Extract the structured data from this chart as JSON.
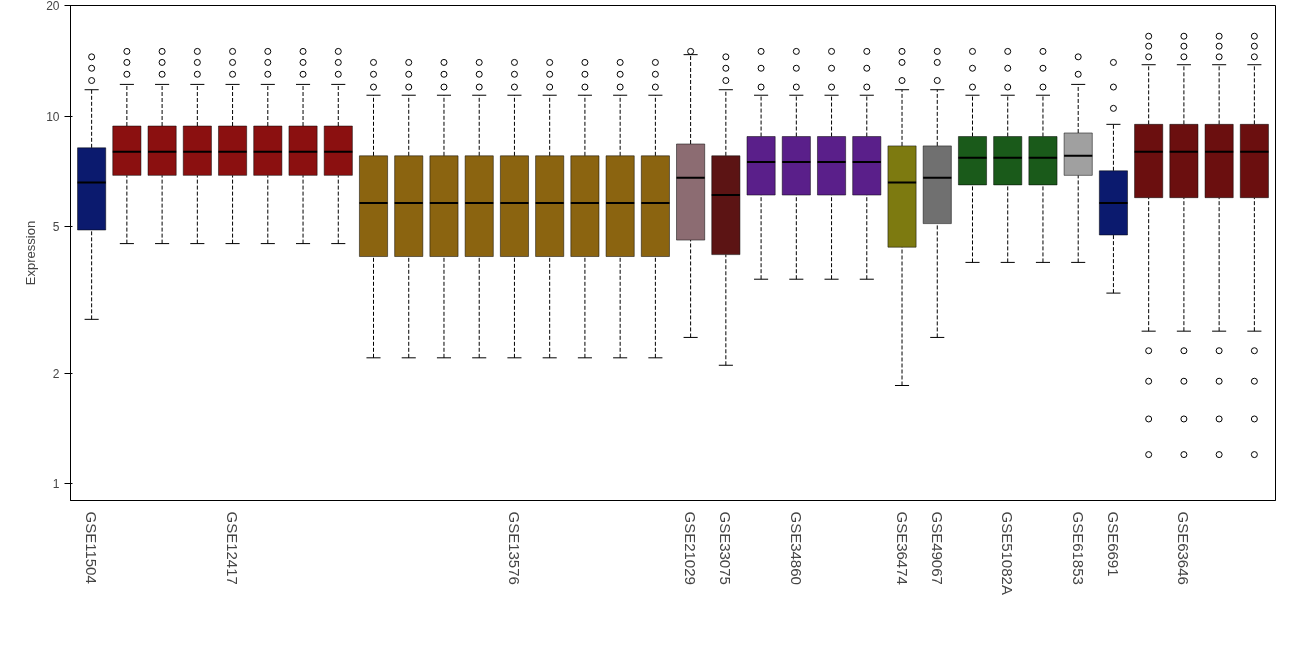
{
  "chart_data": {
    "type": "box",
    "ylabel": "Expression",
    "log": true,
    "grid": false,
    "marker": "circle",
    "line_style": "dashed",
    "ylim": [
      0.9,
      20
    ],
    "yticks": [
      1,
      2,
      5,
      10,
      20
    ],
    "categories": [
      "GSE11504",
      null,
      null,
      null,
      "GSE12417",
      null,
      null,
      null,
      null,
      null,
      null,
      null,
      "GSE13576",
      null,
      null,
      null,
      null,
      "GSE21029",
      "GSE33075",
      null,
      "GSE34860",
      null,
      null,
      "GSE36474",
      "GSE49067",
      null,
      "GSE51082A",
      null,
      "GSE61853",
      "GSE6691",
      null,
      "GSE63646",
      null,
      null
    ],
    "colors": [
      "#0b1a6e",
      "#8b1010",
      "#8b1010",
      "#8b1010",
      "#8b1010",
      "#8b1010",
      "#8b1010",
      "#8b1010",
      "#8b6410",
      "#8b6410",
      "#8b6410",
      "#8b6410",
      "#8b6410",
      "#8b6410",
      "#8b6410",
      "#8b6410",
      "#8b6410",
      "#8c6c72",
      "#5c1414",
      "#5a1f8a",
      "#5a1f8a",
      "#5a1f8a",
      "#5a1f8a",
      "#7d7a10",
      "#707070",
      "#1a5a1a",
      "#1a5a1a",
      "#1a5a1a",
      "#a0a0a0",
      "#0b1a6e",
      "#6b0f0f",
      "#6b0f0f",
      "#6b0f0f",
      "#6b0f0f"
    ],
    "boxes": [
      {
        "low": 2.8,
        "q1": 4.9,
        "median": 6.6,
        "q3": 8.2,
        "high": 11.8,
        "outliers": [
          12.5,
          13.5,
          14.5
        ]
      },
      {
        "low": 4.5,
        "q1": 6.9,
        "median": 8.0,
        "q3": 9.4,
        "high": 12.2,
        "outliers": [
          13,
          14,
          15
        ]
      },
      {
        "low": 4.5,
        "q1": 6.9,
        "median": 8.0,
        "q3": 9.4,
        "high": 12.2,
        "outliers": [
          13,
          14,
          15
        ]
      },
      {
        "low": 4.5,
        "q1": 6.9,
        "median": 8.0,
        "q3": 9.4,
        "high": 12.2,
        "outliers": [
          13,
          14,
          15
        ]
      },
      {
        "low": 4.5,
        "q1": 6.9,
        "median": 8.0,
        "q3": 9.4,
        "high": 12.2,
        "outliers": [
          13,
          14,
          15
        ]
      },
      {
        "low": 4.5,
        "q1": 6.9,
        "median": 8.0,
        "q3": 9.4,
        "high": 12.2,
        "outliers": [
          13,
          14,
          15
        ]
      },
      {
        "low": 4.5,
        "q1": 6.9,
        "median": 8.0,
        "q3": 9.4,
        "high": 12.2,
        "outliers": [
          13,
          14,
          15
        ]
      },
      {
        "low": 4.5,
        "q1": 6.9,
        "median": 8.0,
        "q3": 9.4,
        "high": 12.2,
        "outliers": [
          13,
          14,
          15
        ]
      },
      {
        "low": 2.2,
        "q1": 4.15,
        "median": 5.8,
        "q3": 7.8,
        "high": 11.4,
        "outliers": [
          12,
          13,
          14
        ]
      },
      {
        "low": 2.2,
        "q1": 4.15,
        "median": 5.8,
        "q3": 7.8,
        "high": 11.4,
        "outliers": [
          12,
          13,
          14
        ]
      },
      {
        "low": 2.2,
        "q1": 4.15,
        "median": 5.8,
        "q3": 7.8,
        "high": 11.4,
        "outliers": [
          12,
          13,
          14
        ]
      },
      {
        "low": 2.2,
        "q1": 4.15,
        "median": 5.8,
        "q3": 7.8,
        "high": 11.4,
        "outliers": [
          12,
          13,
          14
        ]
      },
      {
        "low": 2.2,
        "q1": 4.15,
        "median": 5.8,
        "q3": 7.8,
        "high": 11.4,
        "outliers": [
          12,
          13,
          14
        ]
      },
      {
        "low": 2.2,
        "q1": 4.15,
        "median": 5.8,
        "q3": 7.8,
        "high": 11.4,
        "outliers": [
          12,
          13,
          14
        ]
      },
      {
        "low": 2.2,
        "q1": 4.15,
        "median": 5.8,
        "q3": 7.8,
        "high": 11.4,
        "outliers": [
          12,
          13,
          14
        ]
      },
      {
        "low": 2.2,
        "q1": 4.15,
        "median": 5.8,
        "q3": 7.8,
        "high": 11.4,
        "outliers": [
          12,
          13,
          14
        ]
      },
      {
        "low": 2.2,
        "q1": 4.15,
        "median": 5.8,
        "q3": 7.8,
        "high": 11.4,
        "outliers": [
          12,
          13,
          14
        ]
      },
      {
        "low": 2.5,
        "q1": 4.6,
        "median": 6.8,
        "q3": 8.4,
        "high": 14.7,
        "outliers": [
          15
        ]
      },
      {
        "low": 2.1,
        "q1": 4.2,
        "median": 6.1,
        "q3": 7.8,
        "high": 11.8,
        "outliers": [
          12.5,
          13.5,
          14.5
        ]
      },
      {
        "low": 3.6,
        "q1": 6.1,
        "median": 7.5,
        "q3": 8.8,
        "high": 11.4,
        "outliers": [
          12,
          13.5,
          15
        ]
      },
      {
        "low": 3.6,
        "q1": 6.1,
        "median": 7.5,
        "q3": 8.8,
        "high": 11.4,
        "outliers": [
          12,
          13.5,
          15
        ]
      },
      {
        "low": 3.6,
        "q1": 6.1,
        "median": 7.5,
        "q3": 8.8,
        "high": 11.4,
        "outliers": [
          12,
          13.5,
          15
        ]
      },
      {
        "low": 3.6,
        "q1": 6.1,
        "median": 7.5,
        "q3": 8.8,
        "high": 11.4,
        "outliers": [
          12,
          13.5,
          15
        ]
      },
      {
        "low": 1.85,
        "q1": 4.4,
        "median": 6.6,
        "q3": 8.3,
        "high": 11.8,
        "outliers": [
          12.5,
          14,
          15
        ]
      },
      {
        "low": 2.5,
        "q1": 5.1,
        "median": 6.8,
        "q3": 8.3,
        "high": 11.8,
        "outliers": [
          12.5,
          14,
          15
        ]
      },
      {
        "low": 4.0,
        "q1": 6.5,
        "median": 7.7,
        "q3": 8.8,
        "high": 11.4,
        "outliers": [
          12,
          13.5,
          15
        ]
      },
      {
        "low": 4.0,
        "q1": 6.5,
        "median": 7.7,
        "q3": 8.8,
        "high": 11.4,
        "outliers": [
          12,
          13.5,
          15
        ]
      },
      {
        "low": 4.0,
        "q1": 6.5,
        "median": 7.7,
        "q3": 8.8,
        "high": 11.4,
        "outliers": [
          12,
          13.5,
          15
        ]
      },
      {
        "low": 4.0,
        "q1": 6.9,
        "median": 7.8,
        "q3": 9.0,
        "high": 12.2,
        "outliers": [
          13,
          14.5
        ]
      },
      {
        "low": 3.3,
        "q1": 4.75,
        "median": 5.8,
        "q3": 7.1,
        "high": 9.5,
        "outliers": [
          10.5,
          12,
          14
        ]
      },
      {
        "low": 2.6,
        "q1": 6.0,
        "median": 8.0,
        "q3": 9.5,
        "high": 13.8,
        "outliers": [
          1.2,
          1.5,
          1.9,
          2.3,
          14.5,
          15.5,
          16.5
        ]
      },
      {
        "low": 2.6,
        "q1": 6.0,
        "median": 8.0,
        "q3": 9.5,
        "high": 13.8,
        "outliers": [
          1.2,
          1.5,
          1.9,
          2.3,
          14.5,
          15.5,
          16.5
        ]
      },
      {
        "low": 2.6,
        "q1": 6.0,
        "median": 8.0,
        "q3": 9.5,
        "high": 13.8,
        "outliers": [
          1.2,
          1.5,
          1.9,
          2.3,
          14.5,
          15.5,
          16.5
        ]
      },
      {
        "low": 2.6,
        "q1": 6.0,
        "median": 8.0,
        "q3": 9.5,
        "high": 13.8,
        "outliers": [
          1.2,
          1.5,
          1.9,
          2.3,
          14.5,
          15.5,
          16.5
        ]
      }
    ]
  }
}
